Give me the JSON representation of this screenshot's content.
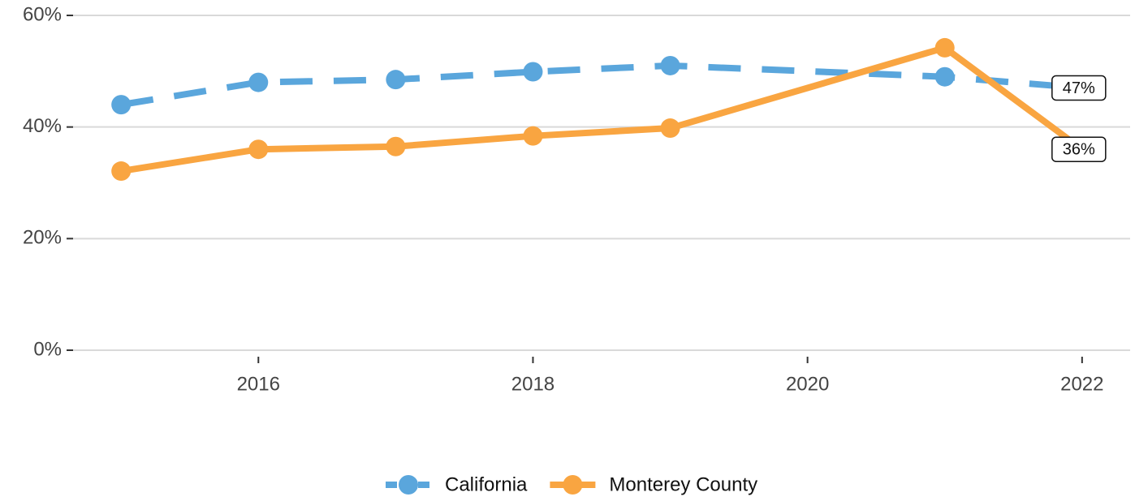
{
  "chart_data": {
    "type": "line",
    "x": [
      2015,
      2016,
      2017,
      2018,
      2019,
      2021,
      2022
    ],
    "series": [
      {
        "name": "California",
        "color": "#5aa6dc",
        "dashed": true,
        "values": [
          44.0,
          48.0,
          48.5,
          49.9,
          51.0,
          49.0,
          47
        ],
        "value_labels": [
          null,
          null,
          null,
          null,
          null,
          null,
          "47%"
        ]
      },
      {
        "name": "Monterey County",
        "color": "#f9a541",
        "dashed": false,
        "values": [
          32.1,
          36.0,
          36.5,
          38.4,
          39.8,
          54.2,
          36
        ],
        "value_labels": [
          null,
          null,
          null,
          null,
          null,
          null,
          "36%"
        ]
      }
    ],
    "xlim": [
      2014.65,
      2022.35
    ],
    "xticks": [
      2016,
      2018,
      2020,
      2022
    ],
    "ylim": [
      0,
      60
    ],
    "yticks": [
      {
        "value": 0,
        "label": "0%"
      },
      {
        "value": 20,
        "label": "20%"
      },
      {
        "value": 40,
        "label": "40%"
      },
      {
        "value": 60,
        "label": "60%"
      }
    ],
    "grid": true,
    "legend": "bottom"
  }
}
